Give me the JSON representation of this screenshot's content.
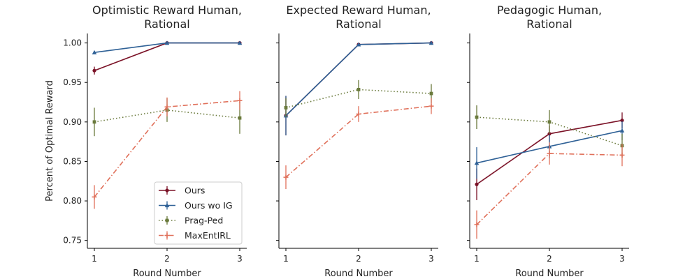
{
  "chart_data": {
    "type": "line",
    "x": [
      1,
      2,
      3
    ],
    "ylim": [
      0.74,
      1.012
    ],
    "yticks": [
      0.75,
      0.8,
      0.85,
      0.9,
      0.95,
      1.0
    ],
    "ytick_labels": [
      "0.75",
      "0.80",
      "0.85",
      "0.90",
      "0.95",
      "1.00"
    ],
    "xticks": [
      1,
      2,
      3
    ],
    "xtick_labels": [
      "1",
      "2",
      "3"
    ],
    "ylabel": "Percent of Optimal Reward",
    "xlabel": "Round Number",
    "legend": {
      "placement": "lower-right",
      "panel": 0
    },
    "series_styles": [
      {
        "name": "Ours",
        "color": "#7b1227",
        "dash": "",
        "marker": "circle"
      },
      {
        "name": "Ours wo IG",
        "color": "#2f6196",
        "dash": "",
        "marker": "triangle"
      },
      {
        "name": "Prag-Ped",
        "color": "#6a7a3c",
        "dash": "dotted",
        "marker": "square"
      },
      {
        "name": "MaxEntIRL",
        "color": "#e0705a",
        "dash": "dashdot",
        "marker": "plus"
      }
    ],
    "panels": [
      {
        "title": [
          "Optimistic Reward Human,",
          "Rational"
        ],
        "series": [
          {
            "name": "Ours",
            "values": [
              0.965,
              1.0,
              1.0
            ],
            "err": [
              0.005,
              0.002,
              0.001
            ]
          },
          {
            "name": "Ours wo IG",
            "values": [
              0.988,
              1.0,
              1.0
            ],
            "err": [
              0.002,
              0.001,
              0.001
            ]
          },
          {
            "name": "Prag-Ped",
            "values": [
              0.9,
              0.915,
              0.905
            ],
            "err": [
              0.018,
              0.015,
              0.02
            ]
          },
          {
            "name": "MaxEntIRL",
            "values": [
              0.805,
              0.919,
              0.927
            ],
            "err": [
              0.015,
              0.012,
              0.012
            ]
          }
        ]
      },
      {
        "title": [
          "Expected Reward Human,",
          "Rational"
        ],
        "series": [
          {
            "name": "Ours",
            "values": [
              0.908,
              0.998,
              1.0
            ],
            "err": [
              0.025,
              0.002,
              0.001
            ]
          },
          {
            "name": "Ours wo IG",
            "values": [
              0.908,
              0.998,
              1.0
            ],
            "err": [
              0.025,
              0.002,
              0.001
            ]
          },
          {
            "name": "Prag-Ped",
            "values": [
              0.918,
              0.941,
              0.936
            ],
            "err": [
              0.012,
              0.012,
              0.012
            ]
          },
          {
            "name": "MaxEntIRL",
            "values": [
              0.83,
              0.91,
              0.92
            ],
            "err": [
              0.015,
              0.01,
              0.01
            ]
          }
        ]
      },
      {
        "title": [
          "Pedagogic Human,",
          "Rational"
        ],
        "series": [
          {
            "name": "Ours",
            "values": [
              0.821,
              0.885,
              0.902
            ],
            "err": [
              0.02,
              0.01,
              0.01
            ]
          },
          {
            "name": "Ours wo IG",
            "values": [
              0.848,
              0.869,
              0.889
            ],
            "err": [
              0.02,
              0.015,
              0.012
            ]
          },
          {
            "name": "Prag-Ped",
            "values": [
              0.906,
              0.9,
              0.87
            ],
            "err": [
              0.015,
              0.015,
              0.015
            ]
          },
          {
            "name": "MaxEntIRL",
            "values": [
              0.77,
              0.86,
              0.858
            ],
            "err": [
              0.018,
              0.014,
              0.014
            ]
          }
        ]
      }
    ]
  }
}
